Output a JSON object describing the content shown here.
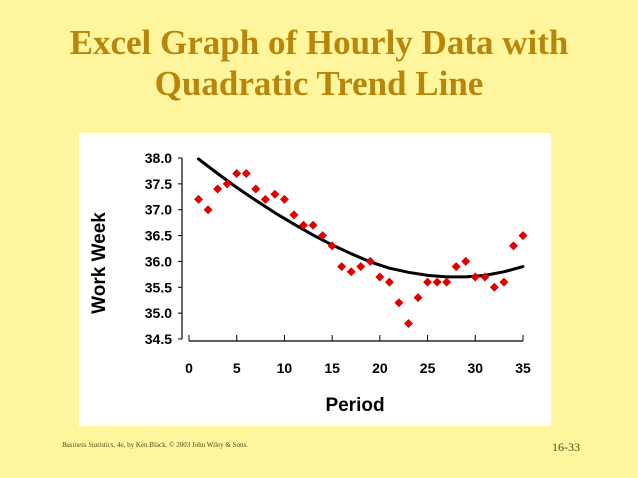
{
  "slide": {
    "title_line1": "Excel Graph of Hourly Data with",
    "title_line2": "Quadratic Trend Line",
    "footer_book": "Business Statistics",
    "footer_rest": ", 4e, by Ken Black. © 2003 John Wiley & Sons.",
    "page_number": "16-33"
  },
  "colors": {
    "background": "#FFF59D",
    "title": "#B8860B",
    "points": "#E00000",
    "trend": "#000000"
  },
  "chart_data": {
    "type": "scatter",
    "xlabel": "Period",
    "ylabel": "Work Week",
    "xlim": [
      0,
      35
    ],
    "ylim": [
      34.5,
      38.0
    ],
    "xticks": [
      0,
      5,
      10,
      15,
      20,
      25,
      30,
      35
    ],
    "yticks": [
      38.0,
      37.5,
      37.0,
      36.5,
      36.0,
      35.5,
      35.0,
      34.5
    ],
    "grid": false,
    "legend": "none",
    "series": [
      {
        "marker": "diamond",
        "x": [
          1,
          2,
          3,
          4,
          5,
          6,
          7,
          8,
          9,
          10,
          11,
          12,
          13,
          14,
          15,
          16,
          17,
          18,
          19,
          20,
          21,
          22,
          23,
          24,
          25,
          26,
          27,
          28,
          29,
          30,
          31,
          32,
          33,
          34,
          35
        ],
        "y": [
          37.2,
          37.0,
          37.4,
          37.5,
          37.7,
          37.7,
          37.4,
          37.2,
          37.3,
          37.2,
          36.9,
          36.7,
          36.7,
          36.5,
          36.3,
          35.9,
          35.8,
          35.9,
          36.0,
          35.7,
          35.6,
          35.2,
          34.8,
          35.3,
          35.6,
          35.6,
          35.6,
          35.9,
          36.0,
          35.7,
          35.7,
          35.5,
          35.6,
          36.3,
          36.5
        ]
      }
    ],
    "trend": {
      "kind": "quadratic",
      "x": [
        1,
        3,
        5,
        7,
        9,
        11,
        13,
        15,
        17,
        19,
        21,
        23,
        25,
        27,
        29,
        31,
        33,
        35
      ],
      "y": [
        37.98,
        37.7,
        37.43,
        37.18,
        36.94,
        36.72,
        36.51,
        36.32,
        36.15,
        35.99,
        35.87,
        35.79,
        35.73,
        35.7,
        35.7,
        35.73,
        35.8,
        35.9
      ]
    }
  }
}
